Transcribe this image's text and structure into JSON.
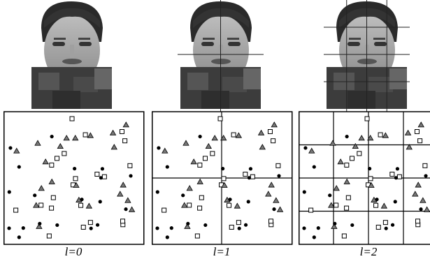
{
  "panels": [
    {
      "label": "l=0"
    },
    {
      "label": "l=1"
    },
    {
      "label": "l=2"
    }
  ]
}
